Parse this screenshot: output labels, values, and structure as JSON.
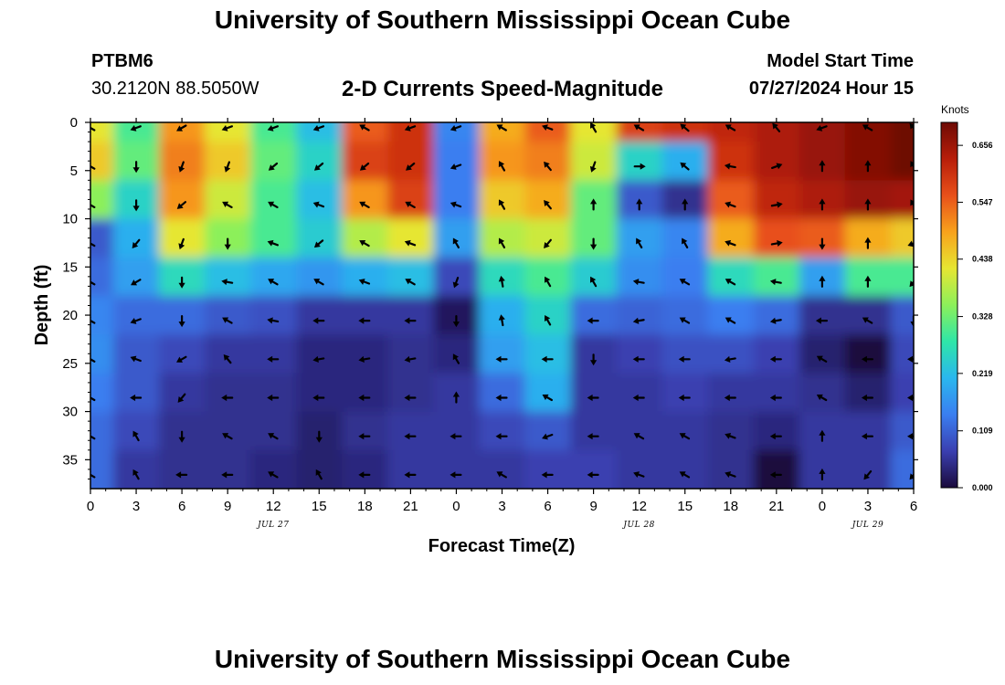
{
  "header": {
    "title": "University of Southern Mississippi Ocean Cube",
    "station_id": "PTBM6",
    "station_coords": "30.2120N  88.5050W",
    "plot_title": "2-D Currents Speed-Magnitude",
    "start_label": "Model Start Time",
    "start_value": "07/27/2024 Hour 15"
  },
  "footer": {
    "title": "University of Southern Mississippi Ocean Cube"
  },
  "chart_data": {
    "type": "heatmap",
    "title": "2-D Currents Speed-Magnitude",
    "xlabel": "Forecast Time(Z)",
    "ylabel": "Depth (ft)",
    "x_ticks": [
      "0",
      "3",
      "6",
      "9",
      "12",
      "15",
      "18",
      "21",
      "0",
      "3",
      "6",
      "9",
      "12",
      "15",
      "18",
      "21",
      "0",
      "3",
      "6"
    ],
    "x_range_hours": [
      0,
      54
    ],
    "date_labels": [
      {
        "text": "JUL 27",
        "hour": 12
      },
      {
        "text": "JUL 28",
        "hour": 36
      },
      {
        "text": "JUL 29",
        "hour": 51
      }
    ],
    "y_ticks": [
      "0",
      "5",
      "10",
      "15",
      "20",
      "25",
      "30",
      "35"
    ],
    "ylim": [
      0,
      38
    ],
    "y_inverted": true,
    "colorbar": {
      "unit": "Knots",
      "range": [
        0,
        0.7
      ],
      "ticks": [
        "0.000",
        "0.109",
        "0.219",
        "0.328",
        "0.438",
        "0.547",
        "0.656"
      ],
      "colors": [
        "#1a0a3c",
        "#3a3fb0",
        "#3a7ef0",
        "#2ab7ee",
        "#2ee6a8",
        "#8cf05a",
        "#e6e632",
        "#f8a21c",
        "#e8501a",
        "#b81e0a",
        "#6e0a04"
      ]
    },
    "depths": [
      0,
      4,
      8,
      12,
      16,
      20,
      24,
      28,
      32,
      36
    ],
    "hours": [
      0,
      3,
      6,
      9,
      12,
      15,
      18,
      21,
      24,
      27,
      30,
      33,
      36,
      39,
      42,
      45,
      48,
      51,
      54
    ],
    "speed": [
      [
        0.42,
        0.3,
        0.5,
        0.42,
        0.3,
        0.22,
        0.55,
        0.6,
        0.15,
        0.48,
        0.55,
        0.42,
        0.58,
        0.6,
        0.62,
        0.64,
        0.66,
        0.68,
        0.7
      ],
      [
        0.45,
        0.32,
        0.52,
        0.45,
        0.32,
        0.25,
        0.58,
        0.6,
        0.14,
        0.5,
        0.52,
        0.4,
        0.25,
        0.2,
        0.6,
        0.64,
        0.66,
        0.68,
        0.7
      ],
      [
        0.35,
        0.25,
        0.5,
        0.4,
        0.3,
        0.22,
        0.5,
        0.58,
        0.14,
        0.45,
        0.48,
        0.32,
        0.1,
        0.05,
        0.55,
        0.62,
        0.64,
        0.66,
        0.65
      ],
      [
        0.1,
        0.2,
        0.42,
        0.35,
        0.3,
        0.24,
        0.38,
        0.42,
        0.18,
        0.38,
        0.4,
        0.32,
        0.18,
        0.15,
        0.48,
        0.56,
        0.55,
        0.48,
        0.45
      ],
      [
        0.12,
        0.18,
        0.26,
        0.22,
        0.19,
        0.17,
        0.2,
        0.22,
        0.08,
        0.26,
        0.3,
        0.24,
        0.16,
        0.14,
        0.26,
        0.3,
        0.18,
        0.3,
        0.3
      ],
      [
        0.15,
        0.12,
        0.12,
        0.1,
        0.09,
        0.06,
        0.06,
        0.06,
        0.02,
        0.2,
        0.25,
        0.12,
        0.11,
        0.12,
        0.14,
        0.12,
        0.05,
        0.05,
        0.1
      ],
      [
        0.16,
        0.1,
        0.08,
        0.06,
        0.06,
        0.04,
        0.04,
        0.05,
        0.04,
        0.18,
        0.22,
        0.06,
        0.07,
        0.09,
        0.09,
        0.07,
        0.03,
        0.0,
        0.08
      ],
      [
        0.14,
        0.1,
        0.06,
        0.05,
        0.05,
        0.04,
        0.04,
        0.05,
        0.06,
        0.12,
        0.2,
        0.06,
        0.06,
        0.07,
        0.06,
        0.06,
        0.05,
        0.03,
        0.07
      ],
      [
        0.12,
        0.08,
        0.05,
        0.05,
        0.05,
        0.03,
        0.05,
        0.06,
        0.06,
        0.08,
        0.1,
        0.06,
        0.06,
        0.06,
        0.05,
        0.04,
        0.06,
        0.06,
        0.1
      ],
      [
        0.12,
        0.06,
        0.05,
        0.05,
        0.04,
        0.03,
        0.04,
        0.06,
        0.06,
        0.06,
        0.07,
        0.07,
        0.06,
        0.06,
        0.05,
        0.0,
        0.06,
        0.06,
        0.12
      ]
    ],
    "arrow_hours": [
      0,
      3,
      6,
      9,
      12,
      15,
      18,
      21,
      24,
      27,
      30,
      33,
      36,
      39,
      42,
      45,
      48,
      51,
      54
    ],
    "arrow_depths": [
      0,
      4,
      8,
      12,
      16,
      20,
      24,
      28,
      32,
      36
    ],
    "arrow_angles_deg": [
      [
        300,
        250,
        240,
        250,
        250,
        250,
        300,
        250,
        250,
        300,
        290,
        330,
        300,
        310,
        300,
        320,
        250,
        300,
        320
      ],
      [
        300,
        180,
        200,
        200,
        230,
        230,
        230,
        230,
        250,
        330,
        320,
        200,
        90,
        310,
        280,
        70,
        0,
        0,
        330
      ],
      [
        300,
        180,
        230,
        300,
        300,
        290,
        300,
        300,
        290,
        330,
        320,
        0,
        0,
        0,
        290,
        80,
        0,
        0,
        330
      ],
      [
        300,
        220,
        200,
        180,
        290,
        230,
        300,
        290,
        330,
        330,
        220,
        180,
        330,
        330,
        290,
        80,
        180,
        0,
        250
      ],
      [
        300,
        240,
        180,
        280,
        300,
        300,
        290,
        300,
        200,
        350,
        330,
        330,
        280,
        300,
        300,
        280,
        0,
        0,
        220
      ],
      [
        300,
        250,
        180,
        300,
        280,
        270,
        270,
        270,
        180,
        350,
        330,
        270,
        260,
        300,
        300,
        260,
        270,
        300,
        180
      ],
      [
        300,
        290,
        240,
        320,
        270,
        260,
        260,
        260,
        330,
        270,
        270,
        180,
        270,
        270,
        260,
        270,
        300,
        270,
        270
      ],
      [
        300,
        270,
        220,
        270,
        270,
        270,
        270,
        270,
        0,
        270,
        300,
        270,
        270,
        270,
        270,
        270,
        300,
        270,
        270
      ],
      [
        300,
        330,
        180,
        300,
        300,
        180,
        270,
        270,
        270,
        270,
        250,
        270,
        300,
        300,
        290,
        270,
        0,
        270,
        270
      ],
      [
        300,
        330,
        270,
        270,
        300,
        330,
        270,
        270,
        270,
        300,
        270,
        270,
        290,
        300,
        290,
        270,
        0,
        220,
        220
      ]
    ]
  }
}
